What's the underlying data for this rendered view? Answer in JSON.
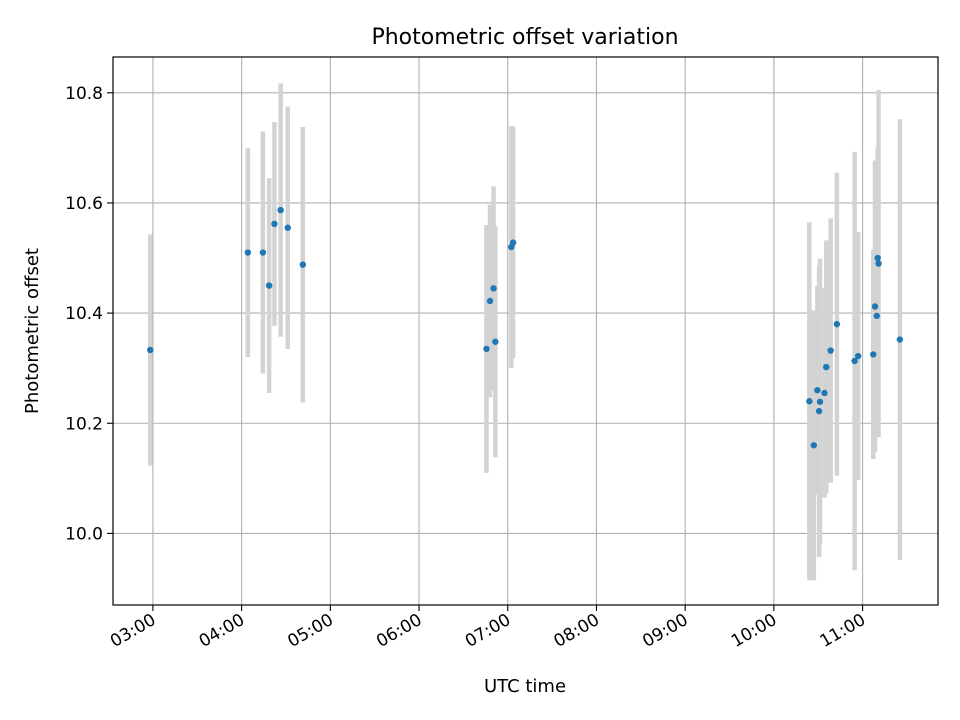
{
  "chart_data": {
    "type": "scatter",
    "title": "Photometric offset variation",
    "xlabel": "UTC time",
    "ylabel": "Photometric offset",
    "x_unit": "hours UTC",
    "xlim": [
      2.55,
      11.85
    ],
    "ylim": [
      9.87,
      10.865
    ],
    "xticks": [
      3,
      4,
      5,
      6,
      7,
      8,
      9,
      10,
      11
    ],
    "xtick_labels": [
      "03:00",
      "04:00",
      "05:00",
      "06:00",
      "07:00",
      "08:00",
      "09:00",
      "10:00",
      "11:00"
    ],
    "yticks": [
      10.0,
      10.2,
      10.4,
      10.6,
      10.8
    ],
    "ytick_labels": [
      "10.0",
      "10.2",
      "10.4",
      "10.6",
      "10.8"
    ],
    "grid": true,
    "colors": {
      "point": "#1f77b4",
      "errorbar": "#d3d3d3",
      "grid": "#b0b0b0"
    },
    "points": [
      {
        "x": 2.97,
        "y": 10.333,
        "yerr": 0.21
      },
      {
        "x": 4.07,
        "y": 10.51,
        "yerr": 0.19
      },
      {
        "x": 4.24,
        "y": 10.51,
        "yerr": 0.22
      },
      {
        "x": 4.31,
        "y": 10.45,
        "yerr": 0.195
      },
      {
        "x": 4.37,
        "y": 10.562,
        "yerr": 0.185
      },
      {
        "x": 4.44,
        "y": 10.587,
        "yerr": 0.23
      },
      {
        "x": 4.52,
        "y": 10.555,
        "yerr": 0.22
      },
      {
        "x": 4.69,
        "y": 10.488,
        "yerr": 0.25
      },
      {
        "x": 6.76,
        "y": 10.335,
        "yerr": 0.225
      },
      {
        "x": 6.8,
        "y": 10.422,
        "yerr": 0.175
      },
      {
        "x": 6.84,
        "y": 10.445,
        "yerr": 0.185
      },
      {
        "x": 6.86,
        "y": 10.348,
        "yerr": 0.21
      },
      {
        "x": 7.04,
        "y": 10.52,
        "yerr": 0.22
      },
      {
        "x": 7.06,
        "y": 10.528,
        "yerr": 0.21
      },
      {
        "x": 10.4,
        "y": 10.24,
        "yerr": 0.325
      },
      {
        "x": 10.45,
        "y": 10.16,
        "yerr": 0.245
      },
      {
        "x": 10.49,
        "y": 10.26,
        "yerr": 0.19
      },
      {
        "x": 10.51,
        "y": 10.222,
        "yerr": 0.265
      },
      {
        "x": 10.52,
        "y": 10.239,
        "yerr": 0.26
      },
      {
        "x": 10.57,
        "y": 10.255,
        "yerr": 0.19
      },
      {
        "x": 10.59,
        "y": 10.302,
        "yerr": 0.23
      },
      {
        "x": 10.64,
        "y": 10.332,
        "yerr": 0.24
      },
      {
        "x": 10.71,
        "y": 10.38,
        "yerr": 0.275
      },
      {
        "x": 10.91,
        "y": 10.313,
        "yerr": 0.38
      },
      {
        "x": 10.95,
        "y": 10.322,
        "yerr": 0.225
      },
      {
        "x": 11.12,
        "y": 10.325,
        "yerr": 0.19
      },
      {
        "x": 11.14,
        "y": 10.412,
        "yerr": 0.265
      },
      {
        "x": 11.16,
        "y": 10.395,
        "yerr": 0.22
      },
      {
        "x": 11.17,
        "y": 10.5,
        "yerr": 0.2
      },
      {
        "x": 11.18,
        "y": 10.49,
        "yerr": 0.315
      },
      {
        "x": 11.42,
        "y": 10.352,
        "yerr": 0.4
      }
    ]
  }
}
